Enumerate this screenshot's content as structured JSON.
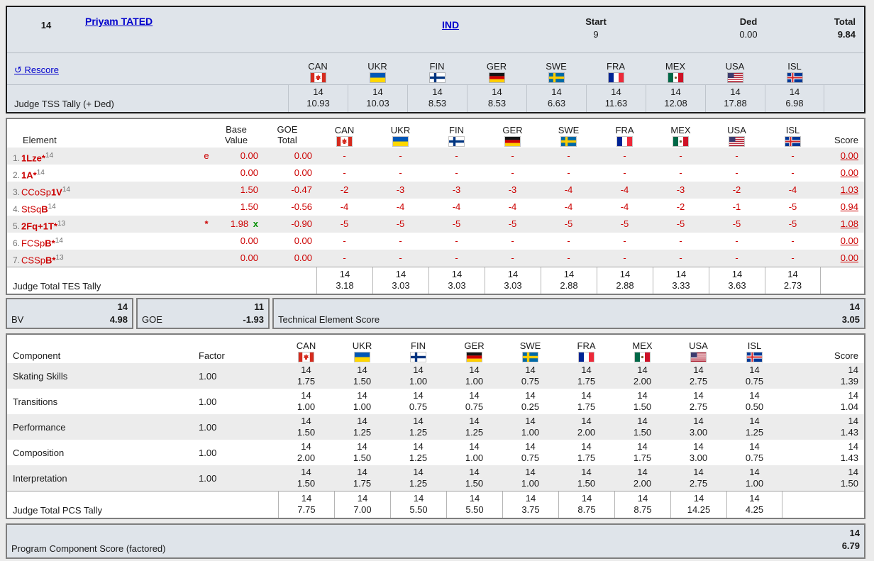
{
  "header": {
    "skater_no": "14",
    "skater_name": "Priyam TATED",
    "nation": "IND",
    "start_label": "Start",
    "start_value": "9",
    "ded_label": "Ded",
    "ded_value": "0.00",
    "total_label": "Total",
    "total_value": "9.84",
    "rescore_icon": "↺",
    "rescore_label": "Rescore",
    "tss_label": "Judge TSS Tally (+ Ded)",
    "tss_tag": "14",
    "tss_values": [
      "10.93",
      "10.03",
      "8.53",
      "8.53",
      "6.63",
      "11.63",
      "12.08",
      "17.88",
      "6.98"
    ]
  },
  "judges": [
    {
      "code": "CAN"
    },
    {
      "code": "UKR"
    },
    {
      "code": "FIN"
    },
    {
      "code": "GER"
    },
    {
      "code": "SWE"
    },
    {
      "code": "FRA"
    },
    {
      "code": "MEX"
    },
    {
      "code": "USA"
    },
    {
      "code": "ISL"
    }
  ],
  "elements": {
    "headers": {
      "element": "Element",
      "base": "Base\nValue",
      "goe": "GOE\nTotal",
      "score": "Score"
    },
    "rows": [
      {
        "num": "1.",
        "parts": [
          {
            "t": "1Lze*",
            "b": true
          }
        ],
        "sup": "14",
        "info": "e",
        "base": "0.00",
        "x": "",
        "goe": "0.00",
        "judges": [
          "-",
          "-",
          "-",
          "-",
          "-",
          "-",
          "-",
          "-",
          "-"
        ],
        "score": "0.00"
      },
      {
        "num": "2.",
        "parts": [
          {
            "t": "1A*",
            "b": true
          }
        ],
        "sup": "14",
        "info": "",
        "base": "0.00",
        "x": "",
        "goe": "0.00",
        "judges": [
          "-",
          "-",
          "-",
          "-",
          "-",
          "-",
          "-",
          "-",
          "-"
        ],
        "score": "0.00"
      },
      {
        "num": "3.",
        "parts": [
          {
            "t": "CCoSp",
            "b": false
          },
          {
            "t": "1V",
            "b": true
          }
        ],
        "sup": "14",
        "info": "",
        "base": "1.50",
        "x": "",
        "goe": "-0.47",
        "judges": [
          "-2",
          "-3",
          "-3",
          "-3",
          "-4",
          "-4",
          "-3",
          "-2",
          "-4"
        ],
        "score": "1.03"
      },
      {
        "num": "4.",
        "parts": [
          {
            "t": "StSq",
            "b": false
          },
          {
            "t": "B",
            "b": true
          }
        ],
        "sup": "14",
        "info": "",
        "base": "1.50",
        "x": "",
        "goe": "-0.56",
        "judges": [
          "-4",
          "-4",
          "-4",
          "-4",
          "-4",
          "-4",
          "-2",
          "-1",
          "-5"
        ],
        "score": "0.94"
      },
      {
        "num": "5.",
        "parts": [
          {
            "t": "2Fq+1T*",
            "b": true
          }
        ],
        "sup": "13",
        "info": "*",
        "base": "1.98",
        "x": "x",
        "goe": "-0.90",
        "judges": [
          "-5",
          "-5",
          "-5",
          "-5",
          "-5",
          "-5",
          "-5",
          "-5",
          "-5"
        ],
        "score": "1.08"
      },
      {
        "num": "6.",
        "parts": [
          {
            "t": "FCSp",
            "b": false
          },
          {
            "t": "B*",
            "b": true
          }
        ],
        "sup": "14",
        "info": "",
        "base": "0.00",
        "x": "",
        "goe": "0.00",
        "judges": [
          "-",
          "-",
          "-",
          "-",
          "-",
          "-",
          "-",
          "-",
          "-"
        ],
        "score": "0.00"
      },
      {
        "num": "7.",
        "parts": [
          {
            "t": "CSSp",
            "b": false
          },
          {
            "t": "B*",
            "b": true
          }
        ],
        "sup": "13",
        "info": "",
        "base": "0.00",
        "x": "",
        "goe": "0.00",
        "judges": [
          "-",
          "-",
          "-",
          "-",
          "-",
          "-",
          "-",
          "-",
          "-"
        ],
        "score": "0.00"
      }
    ],
    "tes_label": "Judge Total TES Tally",
    "tes_tag": "14",
    "tes_values": [
      "3.18",
      "3.03",
      "3.03",
      "3.03",
      "2.88",
      "2.88",
      "3.33",
      "3.63",
      "2.73"
    ]
  },
  "totals": {
    "bv_label": "BV",
    "bv_tag": "14",
    "bv_value": "4.98",
    "goe_label": "GOE",
    "goe_tag": "11",
    "goe_value": "-1.93",
    "tes_label": "Technical Element Score",
    "tes_tag": "14",
    "tes_value": "3.05"
  },
  "components": {
    "headers": {
      "component": "Component",
      "factor": "Factor",
      "score": "Score"
    },
    "tag": "14",
    "rows": [
      {
        "label": "Skating Skills",
        "factor": "1.00",
        "judges": [
          "1.75",
          "1.50",
          "1.00",
          "1.00",
          "0.75",
          "1.75",
          "2.00",
          "2.75",
          "0.75"
        ],
        "score": "1.39"
      },
      {
        "label": "Transitions",
        "factor": "1.00",
        "judges": [
          "1.00",
          "1.00",
          "0.75",
          "0.75",
          "0.25",
          "1.75",
          "1.50",
          "2.75",
          "0.50"
        ],
        "score": "1.04"
      },
      {
        "label": "Performance",
        "factor": "1.00",
        "judges": [
          "1.50",
          "1.25",
          "1.25",
          "1.25",
          "1.00",
          "2.00",
          "1.50",
          "3.00",
          "1.25"
        ],
        "score": "1.43"
      },
      {
        "label": "Composition",
        "factor": "1.00",
        "judges": [
          "2.00",
          "1.50",
          "1.25",
          "1.00",
          "0.75",
          "1.75",
          "1.75",
          "3.00",
          "0.75"
        ],
        "score": "1.43"
      },
      {
        "label": "Interpretation",
        "factor": "1.00",
        "judges": [
          "1.50",
          "1.75",
          "1.25",
          "1.50",
          "1.00",
          "1.50",
          "2.00",
          "2.75",
          "1.00"
        ],
        "score": "1.50"
      }
    ],
    "pcs_label": "Judge Total PCS Tally",
    "pcs_values": [
      "7.75",
      "7.00",
      "5.50",
      "5.50",
      "3.75",
      "8.75",
      "8.75",
      "14.25",
      "4.25"
    ]
  },
  "footer": {
    "pcs_factored_label": "Program Component Score (factored)",
    "tag": "14",
    "value": "6.79"
  },
  "colors": {
    "accent_red": "#cc0000",
    "link_blue": "#0000cc",
    "bonus_green": "#008f00",
    "panel_bg": "#dfe4ea",
    "row_alt": "#ececec"
  }
}
